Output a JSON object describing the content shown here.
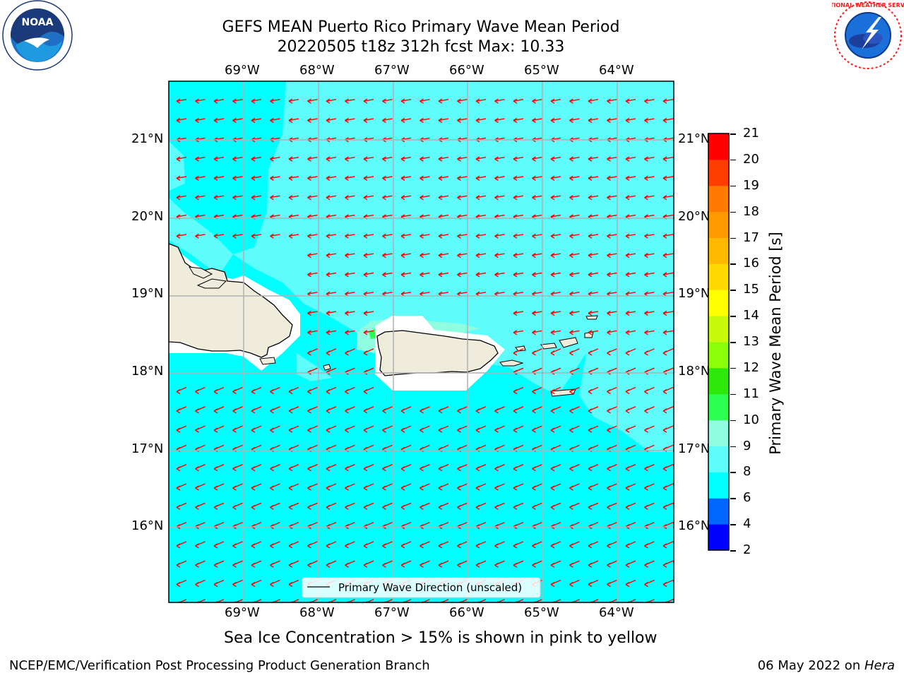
{
  "header": {
    "title_line1": "GEFS MEAN Puerto Rico Primary Wave Mean Period",
    "title_line2": "20220505 t18z 312h fcst   Max: 10.33"
  },
  "logos": {
    "left": "noaa-logo",
    "left_text": "NOAA",
    "right": "nws-logo",
    "right_ring_text": "NATIONAL WEATHER SERVICE"
  },
  "map": {
    "lon_labels": [
      "69°W",
      "68°W",
      "67°W",
      "66°W",
      "65°W",
      "64°W"
    ],
    "lat_labels": [
      "21°N",
      "20°N",
      "19°N",
      "18°N",
      "17°N",
      "16°N"
    ],
    "lon_range": [
      -70.0,
      -63.25
    ],
    "lat_range": [
      15.0,
      21.75
    ],
    "legend_label": "Primary Wave Direction (unscaled)",
    "arrow_direction": "from east (pointing west)",
    "arrow_color": "#ff0000",
    "land_color": "#efecdc",
    "ocean_color_main": "#00ffff",
    "ocean_color_light": "#5ffcfc",
    "ocean_color_lighter": "#8ffde0"
  },
  "colorbar": {
    "label": "Primary Wave Mean Period [s]",
    "ticks": [
      "2",
      "4",
      "6",
      "8",
      "9",
      "10",
      "11",
      "12",
      "13",
      "14",
      "15",
      "16",
      "17",
      "18",
      "19",
      "20",
      "21"
    ],
    "colors": [
      "#0000ff",
      "#0066ff",
      "#00ffff",
      "#5ffcfc",
      "#8ffde0",
      "#2dff52",
      "#2fe80b",
      "#8bff0a",
      "#c8f80a",
      "#ffff00",
      "#ffd900",
      "#ffba00",
      "#ff9900",
      "#ff7a00",
      "#ff3d00",
      "#ff0000"
    ]
  },
  "notes": {
    "sea_ice": "Sea Ice Concentration > 15% is shown in pink to yellow"
  },
  "footer": {
    "left": "NCEP/EMC/Verification Post Processing Product Generation Branch",
    "right_date": "06 May 2022 on ",
    "right_host": "Hera"
  }
}
